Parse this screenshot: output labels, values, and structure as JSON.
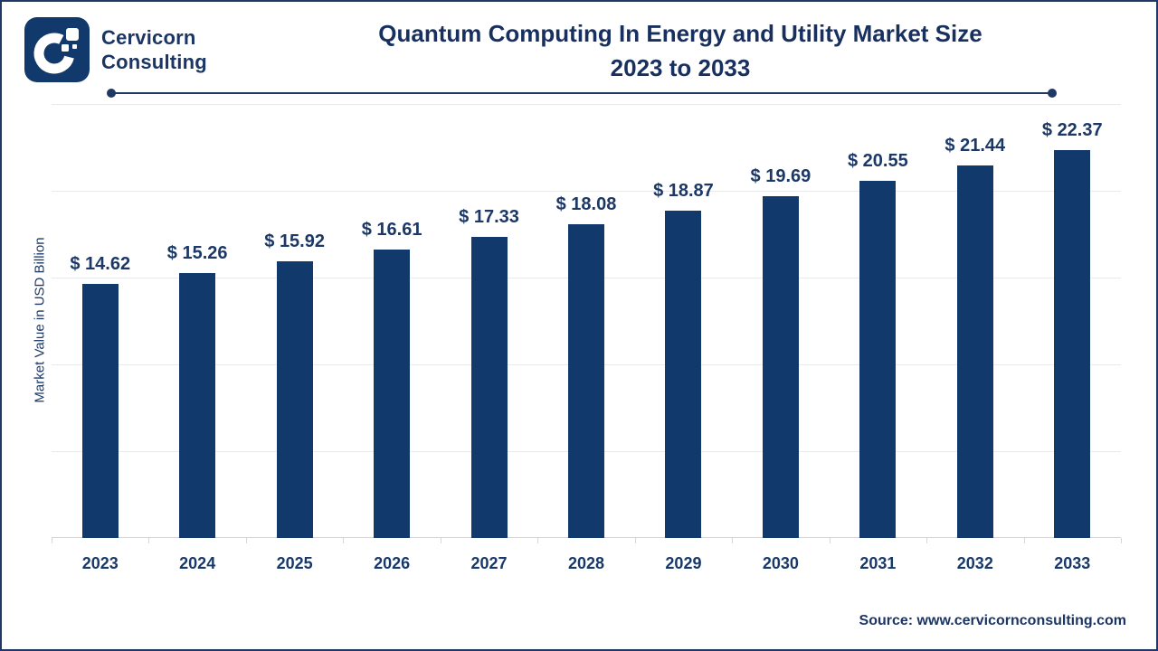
{
  "brand": {
    "line1": "Cervicorn",
    "line2": "Consulting"
  },
  "title": {
    "line1": "Quantum Computing In Energy and Utility Market Size",
    "line2": "2023 to 2033"
  },
  "chart_data": {
    "type": "bar",
    "categories": [
      "2023",
      "2024",
      "2025",
      "2026",
      "2027",
      "2028",
      "2029",
      "2030",
      "2031",
      "2032",
      "2033"
    ],
    "values": [
      14.62,
      15.26,
      15.92,
      16.61,
      17.33,
      18.08,
      18.87,
      19.69,
      20.55,
      21.44,
      22.37
    ],
    "value_labels": [
      "$ 14.62",
      "$ 15.26",
      "$ 15.92",
      "$ 16.61",
      "$ 17.33",
      "$ 18.08",
      "$ 18.87",
      "$ 19.69",
      "$ 20.55",
      "$ 21.44",
      "$ 22.37"
    ],
    "title": "Quantum Computing In Energy and Utility Market Size 2023 to 2033",
    "xlabel": "",
    "ylabel": "Market Value in USD Billion",
    "ylim": [
      0,
      25
    ],
    "gridline_step": 5,
    "grid": true,
    "legend": "none"
  },
  "source": {
    "text": "Source: www.cervicornconsulting.com"
  },
  "colors": {
    "bar": "#12396B",
    "text_navy": "#1B3564",
    "divider": "#1F3864",
    "gridline": "#E9E9E9",
    "axis": "#D6D6D6",
    "background": "#FFFFFF"
  }
}
